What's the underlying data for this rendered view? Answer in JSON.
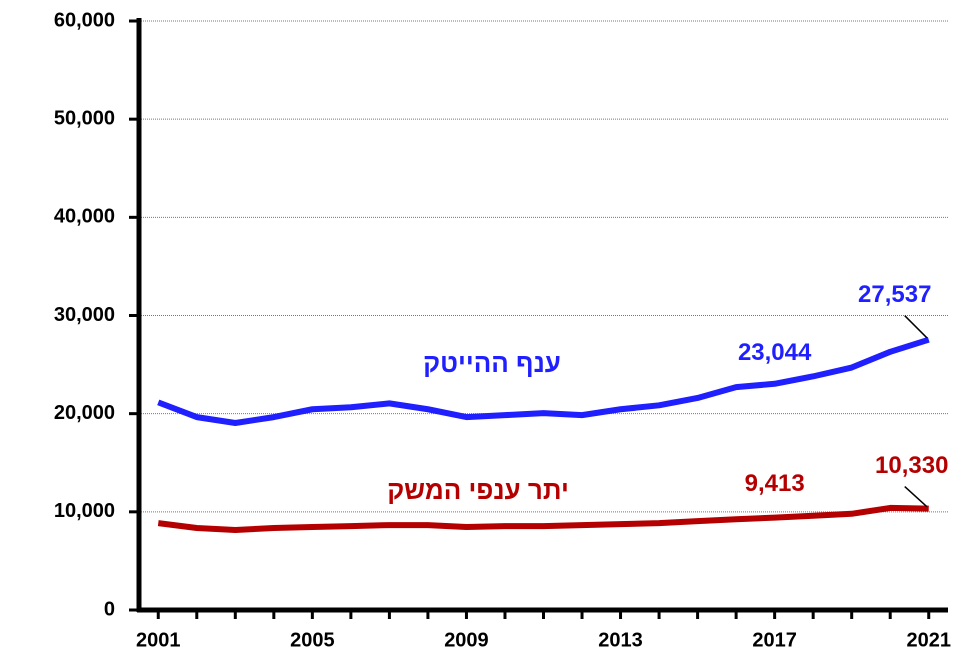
{
  "chart_data": {
    "type": "line",
    "x": [
      2001,
      2002,
      2003,
      2004,
      2005,
      2006,
      2007,
      2008,
      2009,
      2010,
      2011,
      2012,
      2013,
      2014,
      2015,
      2016,
      2017,
      2018,
      2019,
      2020,
      2021
    ],
    "series": [
      {
        "name": "ענף ההייטק",
        "color": "#1f1fff",
        "values": [
          21150,
          19650,
          19050,
          19650,
          20450,
          20650,
          21050,
          20450,
          19650,
          19850,
          20050,
          19850,
          20450,
          20850,
          21600,
          22700,
          23044,
          23800,
          24700,
          26300,
          27537
        ],
        "value_labels": [
          null,
          null,
          null,
          null,
          null,
          null,
          null,
          null,
          null,
          null,
          null,
          null,
          null,
          null,
          null,
          null,
          "23,044",
          null,
          null,
          null,
          "27,537"
        ]
      },
      {
        "name": "יתר ענפי המשק",
        "color": "#b40000",
        "values": [
          8850,
          8350,
          8150,
          8350,
          8450,
          8550,
          8650,
          8650,
          8450,
          8550,
          8550,
          8650,
          8750,
          8850,
          9050,
          9250,
          9413,
          9600,
          9800,
          10400,
          10330
        ],
        "value_labels": [
          null,
          null,
          null,
          null,
          null,
          null,
          null,
          null,
          null,
          null,
          null,
          null,
          null,
          null,
          null,
          null,
          "9,413",
          null,
          null,
          null,
          "10,330"
        ]
      }
    ],
    "xlim": [
      2000.5,
      2021.5
    ],
    "xticks": [
      2001,
      2005,
      2009,
      2013,
      2017,
      2021
    ],
    "ylim": [
      0,
      60000
    ],
    "yticks": [
      0,
      {
        "value": 10000,
        "label": "10,000"
      },
      {
        "value": 20000,
        "label": "20,000"
      },
      {
        "value": 30000,
        "label": "30,000"
      },
      {
        "value": 40000,
        "label": "40,000"
      },
      {
        "value": 50000,
        "label": "50,000"
      },
      {
        "value": 60000,
        "label": "60,000"
      }
    ],
    "grid": true
  }
}
